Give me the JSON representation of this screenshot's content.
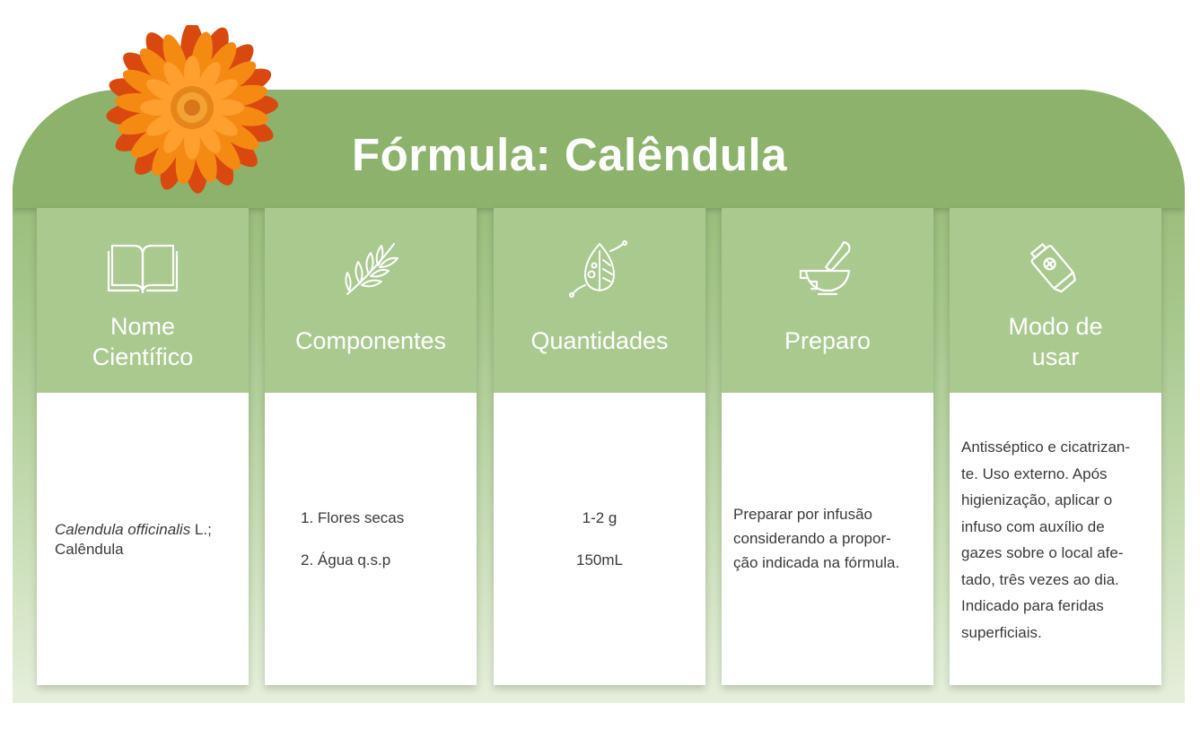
{
  "header": {
    "title": "Fórmula: Calêndula"
  },
  "colors": {
    "header_green": "#8db26b",
    "column_head_green": "#a9c98f",
    "flower_orange": "#f07e10",
    "body_text": "#3a3a3a"
  },
  "columns": [
    {
      "icon": "open-book-icon",
      "label_line1": "Nome",
      "label_line2": "Científico",
      "body": {
        "italic": "Calendula officinalis",
        "rest": " L.;",
        "line2": "Calêndula"
      }
    },
    {
      "icon": "herb-branch-icon",
      "label_line1": "Componentes",
      "items": [
        "1. Flores secas",
        "2. Água q.s.p"
      ]
    },
    {
      "icon": "leaf-drop-icon",
      "label_line1": "Quantidades",
      "items": [
        "1-2 g",
        "150mL"
      ]
    },
    {
      "icon": "mortar-pestle-icon",
      "label_line1": "Preparo",
      "lines": [
        "Preparar por infusão",
        "considerando a propor-",
        "ção indicada na fórmula."
      ]
    },
    {
      "icon": "ointment-tube-icon",
      "label_line1": "Modo de",
      "label_line2": "usar",
      "lines": [
        "Antisséptico e cicatrizan-",
        "te. Uso externo. Após",
        "higienização, aplicar o",
        "infuso com auxílio de",
        "gazes sobre o local afe-",
        "tado, três vezes ao dia.",
        "Indicado para feridas",
        "superficiais."
      ]
    }
  ]
}
